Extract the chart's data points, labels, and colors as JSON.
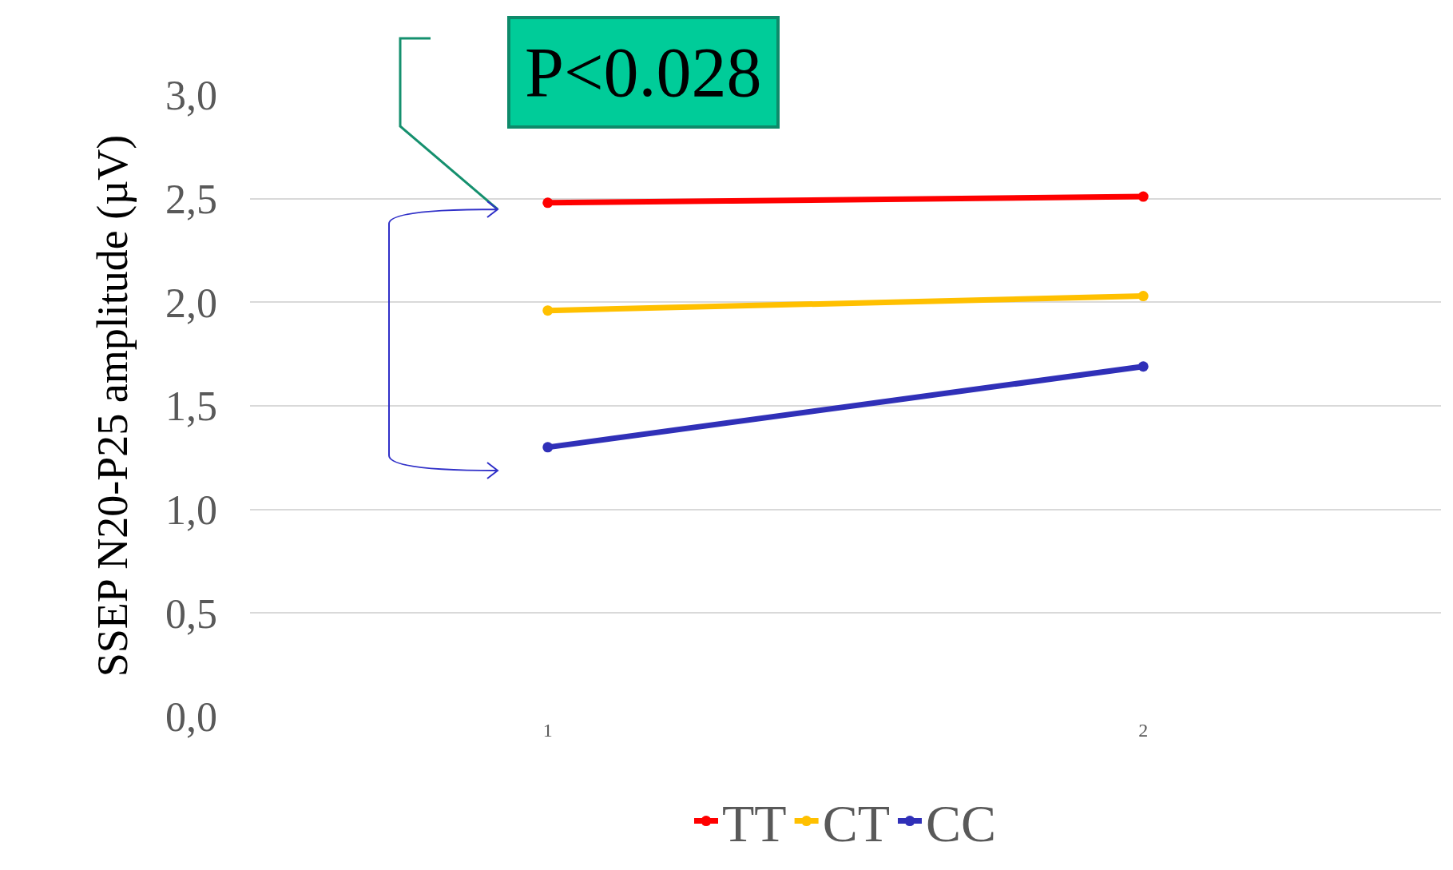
{
  "chart_data": {
    "type": "line",
    "ylabel": "SSEP N20-P25 amplitude (µV)",
    "categories": [
      "1",
      "2"
    ],
    "series": [
      {
        "name": "TT",
        "color": "#ff0000",
        "values": [
          2.48,
          2.51
        ]
      },
      {
        "name": "CT",
        "color": "#ffc000",
        "values": [
          1.96,
          2.03
        ]
      },
      {
        "name": "CC",
        "color": "#3030b8",
        "values": [
          1.3,
          1.69
        ]
      }
    ],
    "ylim": [
      0,
      3
    ],
    "yticks": [
      {
        "value": 0,
        "label": "0,0"
      },
      {
        "value": 0.5,
        "label": "0,5"
      },
      {
        "value": 1,
        "label": "1,0"
      },
      {
        "value": 1.5,
        "label": "1,5"
      },
      {
        "value": 2,
        "label": "2,0"
      },
      {
        "value": 2.5,
        "label": "2,5"
      },
      {
        "value": 3,
        "label": "3,0"
      }
    ],
    "grid": "y",
    "legend": "bottom",
    "marker": "circle",
    "line_style": "solid",
    "annotations": [
      "P<0.028"
    ]
  }
}
